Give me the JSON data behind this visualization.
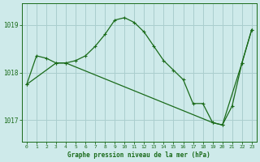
{
  "title": "Graphe pression niveau de la mer (hPa)",
  "bg_color": "#ceeaea",
  "grid_color": "#aacece",
  "line_color": "#1a6b1a",
  "series1": {
    "x": [
      0,
      1,
      2,
      3,
      4,
      5,
      6,
      7,
      8,
      9,
      10,
      11,
      12,
      13,
      14,
      15,
      16,
      17,
      18,
      19,
      20,
      21,
      22,
      23
    ],
    "y": [
      1017.75,
      1018.35,
      1018.3,
      1018.2,
      1018.2,
      1018.25,
      1018.35,
      1018.55,
      1018.8,
      1019.1,
      1019.15,
      1019.05,
      1018.85,
      1018.55,
      1018.25,
      1018.05,
      1017.85,
      1017.35,
      1017.35,
      1016.95,
      1016.9,
      1017.3,
      1018.2,
      1018.9
    ]
  },
  "series2": {
    "x": [
      0,
      3,
      4,
      19,
      20,
      22,
      23
    ],
    "y": [
      1017.75,
      1018.2,
      1018.2,
      1016.95,
      1016.9,
      1018.2,
      1018.9
    ]
  },
  "ylim": [
    1016.55,
    1019.45
  ],
  "yticks": [
    1017,
    1018,
    1019
  ],
  "xlim": [
    -0.5,
    23.5
  ],
  "xticks": [
    0,
    1,
    2,
    3,
    4,
    5,
    6,
    7,
    8,
    9,
    10,
    11,
    12,
    13,
    14,
    15,
    16,
    17,
    18,
    19,
    20,
    21,
    22,
    23
  ]
}
